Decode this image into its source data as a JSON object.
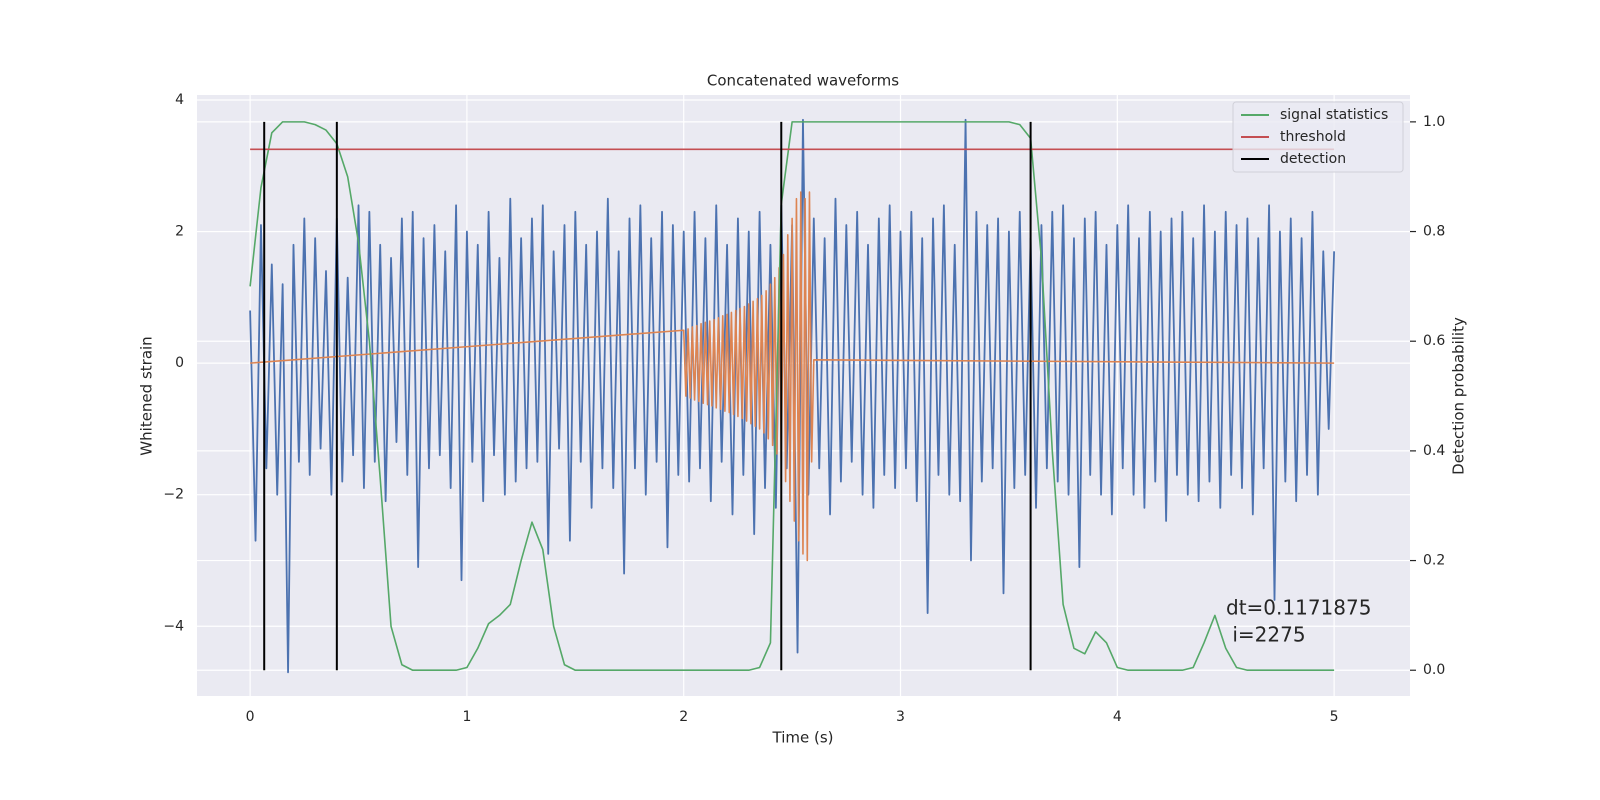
{
  "chart_data": {
    "type": "line",
    "title": "Concatenated waveforms",
    "xlabel": "Time (s)",
    "ylabel": "Whitened strain",
    "y2label": "Detection probability",
    "xlim": [
      -0.245,
      5.35
    ],
    "ylim": [
      -5.06,
      4.076
    ],
    "y2lim": [
      -0.047,
      1.049
    ],
    "xticks": [
      0,
      1,
      2,
      3,
      4,
      5
    ],
    "yticks": [
      {
        "value": -4,
        "label": "−4"
      },
      {
        "value": -2,
        "label": "−2"
      },
      0,
      2,
      4
    ],
    "y2ticks": [
      {
        "value": 0,
        "label": "0.0"
      },
      {
        "value": 0.2,
        "label": "0.2"
      },
      {
        "value": 0.4,
        "label": "0.4"
      },
      {
        "value": 0.6,
        "label": "0.6"
      },
      {
        "value": 0.8,
        "label": "0.8"
      },
      {
        "value": 1,
        "label": "1.0"
      }
    ],
    "grid": true,
    "legend": "upper right",
    "annotations": [
      "dt=0.1171875",
      " i=2275"
    ],
    "series": [
      {
        "color": "#4c72b0",
        "x": [
          0,
          0.025,
          0.05,
          0.075,
          0.1,
          0.125,
          0.15,
          0.175,
          0.2,
          0.225,
          0.25,
          0.275,
          0.3,
          0.325,
          0.35,
          0.375,
          0.4,
          0.425,
          0.45,
          0.475,
          0.5,
          0.525,
          0.55,
          0.575,
          0.6,
          0.625,
          0.65,
          0.675,
          0.7,
          0.725,
          0.75,
          0.775,
          0.8,
          0.825,
          0.85,
          0.875,
          0.9,
          0.925,
          0.95,
          0.975,
          1,
          1.025,
          1.05,
          1.075,
          1.1,
          1.125,
          1.15,
          1.175,
          1.2,
          1.225,
          1.25,
          1.275,
          1.3,
          1.325,
          1.35,
          1.375,
          1.4,
          1.425,
          1.45,
          1.475,
          1.5,
          1.525,
          1.55,
          1.575,
          1.6,
          1.625,
          1.65,
          1.675,
          1.7,
          1.725,
          1.75,
          1.775,
          1.8,
          1.825,
          1.85,
          1.875,
          1.9,
          1.925,
          1.95,
          1.975,
          2,
          2.025,
          2.05,
          2.075,
          2.1,
          2.125,
          2.15,
          2.175,
          2.2,
          2.225,
          2.25,
          2.275,
          2.3,
          2.325,
          2.35,
          2.375,
          2.4,
          2.425,
          2.45,
          2.475,
          2.5,
          2.525,
          2.55,
          2.575,
          2.6,
          2.625,
          2.65,
          2.675,
          2.7,
          2.725,
          2.75,
          2.775,
          2.8,
          2.825,
          2.85,
          2.875,
          2.9,
          2.925,
          2.95,
          2.975,
          3,
          3.025,
          3.05,
          3.075,
          3.1,
          3.125,
          3.15,
          3.175,
          3.2,
          3.225,
          3.25,
          3.275,
          3.3,
          3.325,
          3.35,
          3.375,
          3.4,
          3.425,
          3.45,
          3.475,
          3.5,
          3.525,
          3.55,
          3.575,
          3.6,
          3.625,
          3.65,
          3.675,
          3.7,
          3.725,
          3.75,
          3.775,
          3.8,
          3.825,
          3.85,
          3.875,
          3.9,
          3.925,
          3.95,
          3.975,
          4,
          4.025,
          4.05,
          4.075,
          4.1,
          4.125,
          4.15,
          4.175,
          4.2,
          4.225,
          4.25,
          4.275,
          4.3,
          4.325,
          4.35,
          4.375,
          4.4,
          4.425,
          4.45,
          4.475,
          4.5,
          4.525,
          4.55,
          4.575,
          4.6,
          4.625,
          4.65,
          4.675,
          4.7,
          4.725,
          4.75,
          4.775,
          4.8,
          4.825,
          4.85,
          4.875,
          4.9,
          4.925,
          4.95,
          4.975,
          5
        ],
        "values": [
          0.8,
          -2.7,
          2.1,
          -1.6,
          1.5,
          -2.0,
          1.2,
          -4.7,
          1.8,
          -1.5,
          2.2,
          -1.7,
          1.9,
          -1.3,
          1.4,
          -2.0,
          2.2,
          -1.8,
          1.3,
          -1.4,
          2.4,
          -1.9,
          2.3,
          -1.5,
          1.8,
          -2.1,
          1.6,
          -1.2,
          2.2,
          -1.7,
          2.3,
          -3.1,
          1.9,
          -1.6,
          2.1,
          -1.4,
          1.7,
          -1.9,
          2.4,
          -3.3,
          2.0,
          -1.5,
          1.8,
          -2.1,
          2.3,
          -1.4,
          1.6,
          -2.0,
          2.5,
          -1.8,
          1.9,
          -1.6,
          2.2,
          -1.5,
          2.4,
          -2.9,
          1.7,
          -1.3,
          2.1,
          -2.7,
          2.3,
          -1.5,
          1.8,
          -2.2,
          2.0,
          -1.6,
          2.5,
          -1.9,
          1.7,
          -3.2,
          2.2,
          -1.6,
          2.4,
          -2.0,
          1.9,
          -1.5,
          2.3,
          -2.8,
          2.1,
          -1.7,
          2.0,
          -1.8,
          2.3,
          -1.6,
          1.9,
          -2.1,
          2.4,
          -1.5,
          1.8,
          -2.3,
          2.2,
          -1.7,
          2.0,
          -2.6,
          2.3,
          -1.9,
          1.8,
          -2.2,
          2.4,
          -1.6,
          2.1,
          -4.4,
          3.7,
          -2.0,
          2.2,
          -1.6,
          1.9,
          -2.3,
          2.5,
          -1.8,
          2.1,
          -1.5,
          2.3,
          -2.0,
          1.8,
          -2.2,
          2.2,
          -1.7,
          2.4,
          -1.9,
          2.0,
          -1.6,
          2.3,
          -2.1,
          1.9,
          -3.8,
          2.2,
          -1.7,
          2.4,
          -2.0,
          1.8,
          -2.1,
          3.7,
          -3.0,
          2.3,
          -1.8,
          2.1,
          -1.6,
          2.2,
          -3.5,
          2.0,
          -1.9,
          2.3,
          -1.7,
          1.9,
          -2.2,
          2.1,
          -1.6,
          2.3,
          -1.8,
          2.4,
          -2.0,
          1.9,
          -3.1,
          2.2,
          -1.7,
          2.3,
          -2.0,
          1.8,
          -2.3,
          2.1,
          -1.6,
          2.4,
          -2.0,
          1.9,
          -2.2,
          2.3,
          -1.8,
          2.0,
          -2.4,
          2.2,
          -1.7,
          2.3,
          -2.0,
          1.9,
          -2.1,
          2.4,
          -1.8,
          2.0,
          -2.2,
          2.3,
          -1.7,
          2.1,
          -1.9,
          2.2,
          -2.3,
          1.9,
          -1.6,
          2.4,
          -3.6,
          2.0,
          -1.8,
          2.2,
          -2.1,
          1.9,
          -1.7,
          2.3,
          -2.0,
          1.7,
          -1.0,
          1.7
        ]
      },
      {
        "color": "#dd8452",
        "x": [
          0,
          2,
          2.01,
          2.02,
          2.03,
          2.04,
          2.05,
          2.06,
          2.07,
          2.08,
          2.09,
          2.1,
          2.11,
          2.12,
          2.13,
          2.14,
          2.15,
          2.16,
          2.17,
          2.18,
          2.19,
          2.2,
          2.21,
          2.22,
          2.23,
          2.24,
          2.25,
          2.26,
          2.27,
          2.28,
          2.29,
          2.3,
          2.31,
          2.32,
          2.33,
          2.34,
          2.35,
          2.36,
          2.37,
          2.38,
          2.39,
          2.4,
          2.41,
          2.42,
          2.43,
          2.44,
          2.45,
          2.46,
          2.47,
          2.48,
          2.49,
          2.5,
          2.51,
          2.52,
          2.53,
          2.54,
          2.55,
          2.56,
          2.57,
          2.58,
          2.59,
          2.6,
          5
        ],
        "values": [
          0,
          0.5,
          -0.5,
          0.52,
          -0.53,
          0.55,
          -0.56,
          0.57,
          -0.58,
          0.6,
          -0.61,
          0.62,
          -0.63,
          0.64,
          -0.65,
          0.66,
          -0.68,
          0.69,
          -0.7,
          0.72,
          -0.73,
          0.74,
          -0.75,
          0.77,
          -0.78,
          0.8,
          -0.81,
          0.83,
          -0.84,
          0.86,
          -0.88,
          0.9,
          -0.92,
          0.94,
          -0.96,
          0.98,
          -1.0,
          1.03,
          -1.06,
          1.1,
          -1.15,
          1.2,
          -1.25,
          1.3,
          -1.38,
          1.45,
          -1.55,
          1.65,
          -1.8,
          1.95,
          -2.1,
          2.2,
          -2.4,
          2.5,
          -2.7,
          2.6,
          -2.9,
          2.5,
          -3.0,
          2.6,
          -1.5,
          0.05,
          0
        ]
      },
      {
        "name": "signal statistics",
        "color": "#55a868",
        "axis": "y2",
        "x": [
          0,
          0.05,
          0.1,
          0.15,
          0.2,
          0.25,
          0.3,
          0.35,
          0.4,
          0.45,
          0.5,
          0.55,
          0.6,
          0.65,
          0.7,
          0.75,
          0.8,
          0.85,
          0.9,
          0.95,
          1,
          1.05,
          1.1,
          1.15,
          1.2,
          1.25,
          1.3,
          1.35,
          1.4,
          1.45,
          1.5,
          1.55,
          1.6,
          1.65,
          1.7,
          1.75,
          1.8,
          1.85,
          1.9,
          1.95,
          2,
          2.05,
          2.1,
          2.15,
          2.2,
          2.25,
          2.3,
          2.35,
          2.4,
          2.45,
          2.5,
          2.55,
          2.6,
          2.65,
          2.7,
          2.75,
          2.8,
          2.85,
          2.9,
          2.95,
          3,
          3.05,
          3.1,
          3.15,
          3.2,
          3.25,
          3.3,
          3.35,
          3.4,
          3.45,
          3.5,
          3.55,
          3.6,
          3.65,
          3.7,
          3.75,
          3.8,
          3.85,
          3.9,
          3.95,
          4,
          4.05,
          4.1,
          4.15,
          4.2,
          4.25,
          4.3,
          4.35,
          4.4,
          4.45,
          4.5,
          4.55,
          4.6,
          4.65,
          4.7,
          4.75,
          4.8,
          4.85,
          4.9,
          4.95,
          5
        ],
        "values": [
          0.7,
          0.88,
          0.98,
          1.0,
          1.0,
          1.0,
          0.995,
          0.985,
          0.96,
          0.9,
          0.78,
          0.6,
          0.35,
          0.08,
          0.01,
          0,
          0,
          0,
          0,
          0,
          0.005,
          0.04,
          0.085,
          0.1,
          0.12,
          0.2,
          0.27,
          0.22,
          0.08,
          0.01,
          0,
          0,
          0,
          0,
          0,
          0,
          0,
          0,
          0,
          0,
          0,
          0,
          0,
          0,
          0,
          0,
          0,
          0.005,
          0.05,
          0.85,
          1,
          1,
          1,
          1,
          1,
          1,
          1,
          1,
          1,
          1,
          1,
          1,
          1,
          1,
          1,
          1,
          1,
          1,
          1,
          1,
          1,
          0.995,
          0.97,
          0.75,
          0.4,
          0.12,
          0.04,
          0.03,
          0.07,
          0.05,
          0.005,
          0,
          0,
          0,
          0,
          0,
          0,
          0.005,
          0.05,
          0.1,
          0.04,
          0.005,
          0,
          0,
          0,
          0,
          0,
          0,
          0,
          0,
          0
        ]
      },
      {
        "name": "threshold",
        "color": "#c44e52",
        "axis": "y2",
        "x": [
          0,
          5
        ],
        "values": [
          0.95,
          0.95
        ]
      },
      {
        "name": "detection",
        "color": "#000000",
        "axis": "y2",
        "kind": "vlines",
        "x": [
          0.065,
          0.4,
          2.45,
          3.6
        ],
        "ymin": 0,
        "ymax": 1
      }
    ]
  }
}
